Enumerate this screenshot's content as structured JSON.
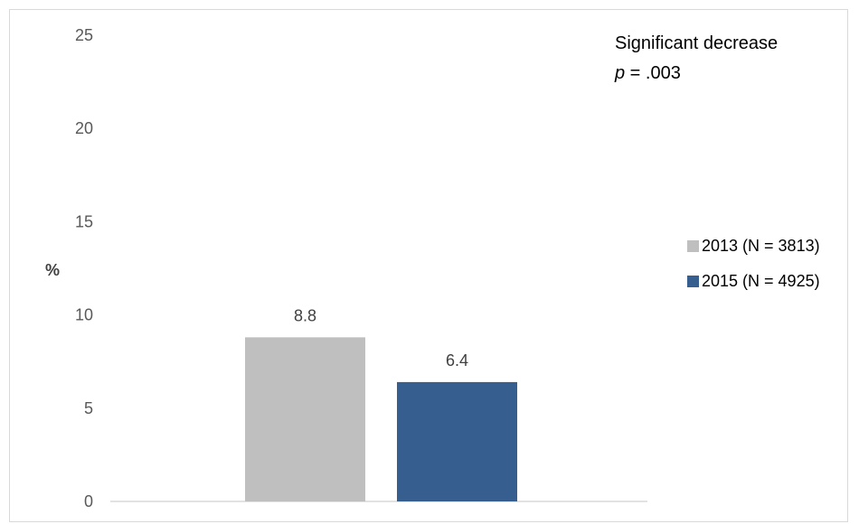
{
  "chart_data": {
    "type": "bar",
    "ylabel": "%",
    "ylim": [
      0,
      25
    ],
    "yticks": [
      0,
      5,
      10,
      15,
      20,
      25
    ],
    "grid": false,
    "legend_position": "right",
    "series": [
      {
        "name": "2013 (N = 3813)",
        "values": [
          8.8
        ],
        "color": "#bfbfbf"
      },
      {
        "name": "2015 (N = 4925)",
        "values": [
          6.4
        ],
        "color": "#365e8f"
      }
    ],
    "annotation": {
      "line1": "Significant decrease",
      "p_symbol": "p",
      "p_rest": " = .003"
    }
  }
}
